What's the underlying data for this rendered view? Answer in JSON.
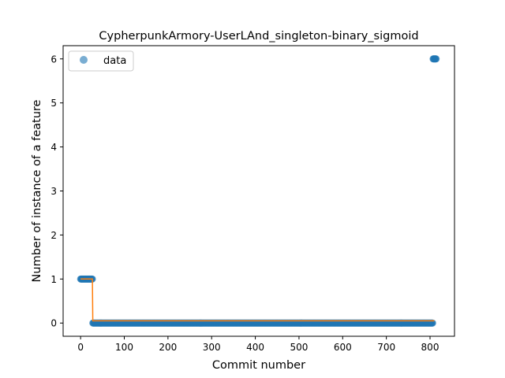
{
  "chart_data": {
    "type": "scatter",
    "title": "CypherpunkArmory-UserLAnd_singleton-binary_sigmoid",
    "xlabel": "Commit number",
    "ylabel": "Number of instance of a feature",
    "xlim": [
      -40,
      856
    ],
    "ylim": [
      -0.3,
      6.3
    ],
    "x_ticks": [
      0,
      100,
      200,
      300,
      400,
      500,
      600,
      700,
      800
    ],
    "y_ticks": [
      0,
      1,
      2,
      3,
      4,
      5,
      6
    ],
    "grid": false,
    "legend": {
      "placement": "top-left",
      "entries": [
        "data"
      ]
    },
    "series": [
      {
        "name": "data",
        "kind": "points",
        "color": "#1f77b4",
        "segments": [
          {
            "x_start": 0,
            "x_end": 27,
            "y": 1
          },
          {
            "x_start": 28,
            "x_end": 806,
            "y": 0
          },
          {
            "x_start": 807,
            "x_end": 814,
            "y": 6
          }
        ]
      },
      {
        "kind": "fit-line",
        "color": "#ff7f0e",
        "x": [
          0,
          27,
          28,
          810
        ],
        "y": [
          1,
          1,
          0.05,
          0.05
        ]
      }
    ]
  }
}
